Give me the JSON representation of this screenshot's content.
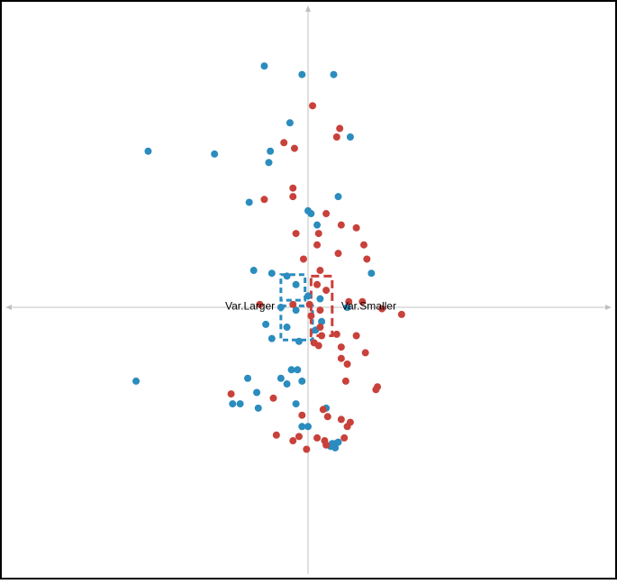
{
  "chart_data": {
    "type": "scatter",
    "title": "",
    "xlabel": "",
    "ylabel": "",
    "xlim": [
      -10,
      10
    ],
    "ylim": [
      -10,
      10
    ],
    "grid": false,
    "axes": "crosshair-through-origin",
    "legend": "none",
    "colors": {
      "blue": "#2b8cbe",
      "red": "#c8413a",
      "axis": "#c0c0c0",
      "border": "#000000"
    },
    "annotations": [
      {
        "text": "Var.Larger",
        "x": -1.1,
        "y": -0.4,
        "anchor": "end"
      },
      {
        "text": "Var.Smaller",
        "x": 1.1,
        "y": -0.4,
        "anchor": "start"
      }
    ],
    "series": [
      {
        "color": "#2b8cbe",
        "points": [
          [
            -1.45,
            8.5
          ],
          [
            -0.2,
            8.2
          ],
          [
            0.85,
            8.2
          ],
          [
            -0.6,
            6.5
          ],
          [
            1.4,
            6.0
          ],
          [
            -5.3,
            5.5
          ],
          [
            -3.1,
            5.4
          ],
          [
            -1.25,
            5.5
          ],
          [
            -1.3,
            5.1
          ],
          [
            -1.95,
            3.7
          ],
          [
            1.0,
            3.9
          ],
          [
            0.0,
            3.4
          ],
          [
            0.1,
            3.3
          ],
          [
            0.3,
            2.9
          ],
          [
            -1.8,
            1.3
          ],
          [
            -1.2,
            1.2
          ],
          [
            2.1,
            1.2
          ],
          [
            -0.7,
            1.1
          ],
          [
            -0.4,
            0.8
          ],
          [
            0.0,
            0.4
          ],
          [
            -0.9,
            0.0
          ],
          [
            -0.4,
            -0.1
          ],
          [
            0.4,
            0.3
          ],
          [
            1.3,
            0.0
          ],
          [
            0.45,
            -0.5
          ],
          [
            -1.4,
            -0.6
          ],
          [
            -0.7,
            -0.7
          ],
          [
            0.25,
            -0.8
          ],
          [
            -1.2,
            -1.1
          ],
          [
            -0.3,
            -1.2
          ],
          [
            -5.7,
            -2.6
          ],
          [
            -0.55,
            -2.2
          ],
          [
            -0.35,
            -2.2
          ],
          [
            -2.0,
            -2.5
          ],
          [
            -0.9,
            -2.5
          ],
          [
            -0.7,
            -2.7
          ],
          [
            -0.2,
            -2.6
          ],
          [
            -1.7,
            -3.0
          ],
          [
            -2.5,
            -3.4
          ],
          [
            -2.25,
            -3.4
          ],
          [
            -1.65,
            -3.55
          ],
          [
            -0.4,
            -3.4
          ],
          [
            0.6,
            -3.55
          ],
          [
            -0.2,
            -4.2
          ],
          [
            0.0,
            -4.2
          ],
          [
            0.8,
            -4.8
          ],
          [
            0.9,
            -4.8
          ],
          [
            1.0,
            -4.75
          ],
          [
            0.75,
            -4.9
          ],
          [
            0.9,
            -4.95
          ]
        ]
      },
      {
        "color": "#c8413a",
        "points": [
          [
            0.15,
            7.1
          ],
          [
            1.05,
            6.3
          ],
          [
            0.95,
            6.0
          ],
          [
            -0.8,
            5.8
          ],
          [
            -0.45,
            5.6
          ],
          [
            -0.5,
            4.2
          ],
          [
            -0.5,
            3.9
          ],
          [
            -1.45,
            3.8
          ],
          [
            0.6,
            3.3
          ],
          [
            1.1,
            2.9
          ],
          [
            -0.4,
            2.6
          ],
          [
            0.35,
            2.6
          ],
          [
            1.6,
            2.8
          ],
          [
            1.85,
            2.2
          ],
          [
            0.3,
            2.2
          ],
          [
            1.0,
            1.9
          ],
          [
            -0.15,
            1.7
          ],
          [
            1.95,
            1.7
          ],
          [
            0.4,
            1.3
          ],
          [
            0.3,
            0.8
          ],
          [
            0.6,
            0.6
          ],
          [
            -1.6,
            0.1
          ],
          [
            -0.5,
            0.1
          ],
          [
            0.05,
            0.1
          ],
          [
            0.4,
            -0.1
          ],
          [
            1.35,
            0.2
          ],
          [
            1.8,
            0.2
          ],
          [
            2.45,
            -0.05
          ],
          [
            3.1,
            -0.25
          ],
          [
            0.1,
            -0.3
          ],
          [
            0.4,
            -0.7
          ],
          [
            0.45,
            -1.0
          ],
          [
            0.95,
            -0.95
          ],
          [
            1.6,
            -1.0
          ],
          [
            0.35,
            -1.35
          ],
          [
            0.2,
            -1.25
          ],
          [
            1.1,
            -1.4
          ],
          [
            1.9,
            -1.6
          ],
          [
            1.1,
            -1.8
          ],
          [
            1.3,
            -2.0
          ],
          [
            1.25,
            -2.6
          ],
          [
            2.3,
            -2.8
          ],
          [
            2.25,
            -2.9
          ],
          [
            -2.55,
            -3.05
          ],
          [
            -1.15,
            -3.2
          ],
          [
            -0.2,
            -3.8
          ],
          [
            0.5,
            -3.6
          ],
          [
            0.65,
            -3.85
          ],
          [
            1.1,
            -3.95
          ],
          [
            1.3,
            -4.2
          ],
          [
            1.4,
            -4.05
          ],
          [
            -1.05,
            -4.5
          ],
          [
            -0.3,
            -4.55
          ],
          [
            -0.5,
            -4.7
          ],
          [
            -0.05,
            -5.0
          ],
          [
            0.3,
            -4.6
          ],
          [
            0.55,
            -4.7
          ],
          [
            1.2,
            -4.6
          ],
          [
            0.6,
            -4.85
          ]
        ]
      }
    ],
    "boxes": [
      {
        "color": "#2b8cbe",
        "x0": -0.9,
        "x1": -0.1,
        "y0": 0.25,
        "y1": 1.15
      },
      {
        "color": "#2b8cbe",
        "x0": -0.9,
        "x1": 0.15,
        "y0": -1.15,
        "y1": 0.05
      },
      {
        "color": "#c8413a",
        "x0": 0.1,
        "x1": 0.8,
        "y0": -1.0,
        "y1": 1.1
      }
    ]
  }
}
